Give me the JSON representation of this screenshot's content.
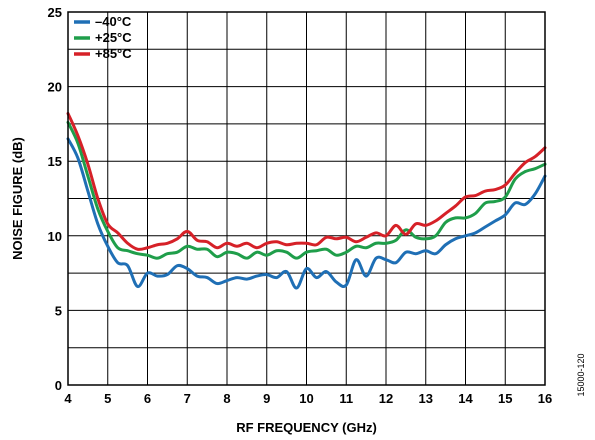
{
  "chart_data": {
    "type": "line",
    "xlabel": "RF FREQUENCY (GHz)",
    "ylabel": "NOISE FIGURE (dB)",
    "xlim": [
      4,
      16
    ],
    "ylim": [
      0,
      25
    ],
    "xticks": [
      "4",
      "5",
      "6",
      "7",
      "8",
      "9",
      "10",
      "11",
      "12",
      "13",
      "14",
      "15",
      "16"
    ],
    "yticks": [
      "0",
      "5",
      "10",
      "15",
      "20",
      "25"
    ],
    "grid": true,
    "legend_position": "top-left",
    "figure_id": "15000-120",
    "series": [
      {
        "name": "–40°C",
        "color": "#1f6fb5",
        "x": [
          4.0,
          4.25,
          4.5,
          4.75,
          5.0,
          5.25,
          5.5,
          5.75,
          6.0,
          6.25,
          6.5,
          6.75,
          7.0,
          7.25,
          7.5,
          7.75,
          8.0,
          8.25,
          8.5,
          8.75,
          9.0,
          9.25,
          9.5,
          9.75,
          10.0,
          10.25,
          10.5,
          10.75,
          11.0,
          11.25,
          11.5,
          11.75,
          12.0,
          12.25,
          12.5,
          12.75,
          13.0,
          13.25,
          13.5,
          13.75,
          14.0,
          14.25,
          14.5,
          14.75,
          15.0,
          15.25,
          15.5,
          15.75,
          16.0
        ],
        "y": [
          16.5,
          15.2,
          13.0,
          10.8,
          9.3,
          8.2,
          8.0,
          6.6,
          7.5,
          7.3,
          7.4,
          8.0,
          7.8,
          7.3,
          7.2,
          6.8,
          7.0,
          7.2,
          7.1,
          7.3,
          7.4,
          7.2,
          7.6,
          6.5,
          7.8,
          7.2,
          7.6,
          6.9,
          6.7,
          8.4,
          7.3,
          8.5,
          8.4,
          8.2,
          8.9,
          8.8,
          9.0,
          8.8,
          9.4,
          9.8,
          10.0,
          10.2,
          10.6,
          11.0,
          11.4,
          12.2,
          12.1,
          12.8,
          14.0
        ]
      },
      {
        "name": "+25°C",
        "color": "#1f9e4a",
        "x": [
          4.0,
          4.25,
          4.5,
          4.75,
          5.0,
          5.25,
          5.5,
          5.75,
          6.0,
          6.25,
          6.5,
          6.75,
          7.0,
          7.25,
          7.5,
          7.75,
          8.0,
          8.25,
          8.5,
          8.75,
          9.0,
          9.25,
          9.5,
          9.75,
          10.0,
          10.25,
          10.5,
          10.75,
          11.0,
          11.25,
          11.5,
          11.75,
          12.0,
          12.25,
          12.5,
          12.75,
          13.0,
          13.25,
          13.5,
          13.75,
          14.0,
          14.25,
          14.5,
          14.75,
          15.0,
          15.25,
          15.5,
          15.75,
          16.0
        ],
        "y": [
          17.6,
          16.2,
          14.0,
          11.8,
          10.3,
          9.2,
          9.0,
          8.8,
          8.7,
          8.5,
          8.8,
          8.9,
          9.3,
          9.1,
          9.1,
          8.6,
          8.9,
          8.8,
          8.5,
          8.9,
          8.7,
          9.0,
          8.9,
          8.5,
          8.9,
          9.0,
          9.1,
          8.7,
          8.9,
          9.3,
          9.2,
          9.5,
          9.5,
          9.7,
          10.4,
          9.9,
          9.8,
          10.0,
          10.9,
          11.2,
          11.2,
          11.5,
          12.2,
          12.3,
          12.6,
          13.8,
          14.3,
          14.5,
          14.8
        ]
      },
      {
        "name": "+85°C",
        "color": "#d62128",
        "x": [
          4.0,
          4.25,
          4.5,
          4.75,
          5.0,
          5.25,
          5.5,
          5.75,
          6.0,
          6.25,
          6.5,
          6.75,
          7.0,
          7.25,
          7.5,
          7.75,
          8.0,
          8.25,
          8.5,
          8.75,
          9.0,
          9.25,
          9.5,
          9.75,
          10.0,
          10.25,
          10.5,
          10.75,
          11.0,
          11.25,
          11.5,
          11.75,
          12.0,
          12.25,
          12.5,
          12.75,
          13.0,
          13.25,
          13.5,
          13.75,
          14.0,
          14.25,
          14.5,
          14.75,
          15.0,
          15.25,
          15.5,
          15.75,
          16.0
        ],
        "y": [
          18.2,
          16.7,
          14.8,
          12.5,
          10.8,
          10.2,
          9.5,
          9.1,
          9.2,
          9.4,
          9.5,
          9.8,
          10.3,
          9.7,
          9.6,
          9.2,
          9.5,
          9.3,
          9.5,
          9.2,
          9.5,
          9.6,
          9.4,
          9.5,
          9.5,
          9.4,
          9.9,
          9.8,
          9.9,
          9.6,
          9.9,
          10.2,
          10.0,
          10.7,
          10.1,
          10.8,
          10.7,
          11.0,
          11.5,
          12.0,
          12.6,
          12.7,
          13.0,
          13.1,
          13.4,
          14.2,
          14.9,
          15.3,
          15.9
        ]
      }
    ]
  }
}
